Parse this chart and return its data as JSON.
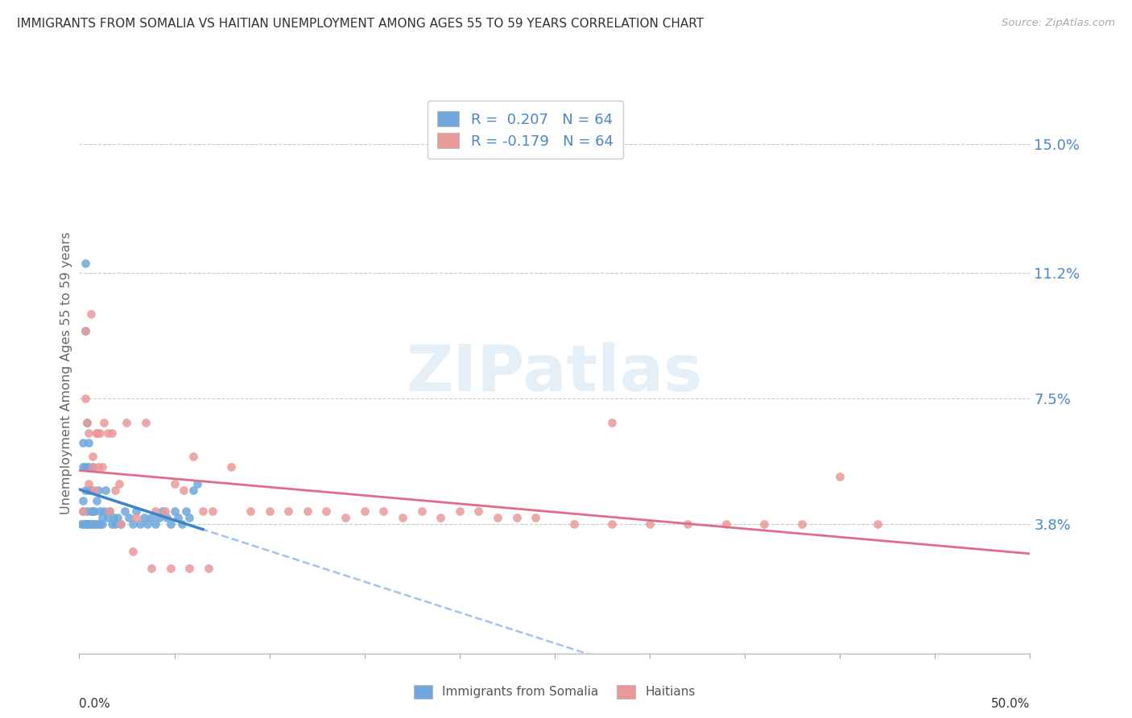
{
  "title": "IMMIGRANTS FROM SOMALIA VS HAITIAN UNEMPLOYMENT AMONG AGES 55 TO 59 YEARS CORRELATION CHART",
  "source": "Source: ZipAtlas.com",
  "ylabel": "Unemployment Among Ages 55 to 59 years",
  "ytick_labels": [
    "3.8%",
    "7.5%",
    "11.2%",
    "15.0%"
  ],
  "ytick_values": [
    0.038,
    0.075,
    0.112,
    0.15
  ],
  "xlim": [
    0.0,
    0.5
  ],
  "ylim": [
    0.0,
    0.165
  ],
  "legend_somalia_r": "R =  0.207",
  "legend_somalia_n": "N = 64",
  "legend_haitian_r": "R = -0.179",
  "legend_haitian_n": "N = 64",
  "somalia_color": "#6fa8dc",
  "haitian_color": "#ea9999",
  "somalia_line_color": "#3d85c8",
  "haitian_line_color": "#e06c8a",
  "dashed_line_color": "#a4c2f4",
  "background_color": "#ffffff",
  "watermark": "ZIPatlas",
  "grid_color": "#cccccc",
  "somalia_x": [
    0.001,
    0.002,
    0.002,
    0.002,
    0.002,
    0.002,
    0.003,
    0.003,
    0.003,
    0.003,
    0.003,
    0.004,
    0.004,
    0.004,
    0.004,
    0.005,
    0.005,
    0.005,
    0.005,
    0.006,
    0.006,
    0.006,
    0.007,
    0.007,
    0.007,
    0.008,
    0.008,
    0.009,
    0.009,
    0.01,
    0.01,
    0.011,
    0.011,
    0.012,
    0.012,
    0.013,
    0.014,
    0.015,
    0.016,
    0.017,
    0.018,
    0.019,
    0.02,
    0.022,
    0.024,
    0.026,
    0.028,
    0.03,
    0.032,
    0.034,
    0.036,
    0.038,
    0.04,
    0.042,
    0.044,
    0.046,
    0.048,
    0.05,
    0.052,
    0.054,
    0.056,
    0.058,
    0.06,
    0.062
  ],
  "somalia_y": [
    0.038,
    0.045,
    0.038,
    0.055,
    0.062,
    0.042,
    0.055,
    0.048,
    0.038,
    0.095,
    0.115,
    0.038,
    0.038,
    0.042,
    0.068,
    0.038,
    0.048,
    0.055,
    0.062,
    0.038,
    0.042,
    0.048,
    0.038,
    0.042,
    0.055,
    0.038,
    0.042,
    0.038,
    0.045,
    0.038,
    0.048,
    0.038,
    0.042,
    0.038,
    0.04,
    0.042,
    0.048,
    0.04,
    0.042,
    0.038,
    0.04,
    0.038,
    0.04,
    0.038,
    0.042,
    0.04,
    0.038,
    0.042,
    0.038,
    0.04,
    0.038,
    0.04,
    0.038,
    0.04,
    0.042,
    0.04,
    0.038,
    0.042,
    0.04,
    0.038,
    0.042,
    0.04,
    0.048,
    0.05
  ],
  "haitian_x": [
    0.002,
    0.003,
    0.004,
    0.005,
    0.006,
    0.007,
    0.008,
    0.009,
    0.01,
    0.011,
    0.013,
    0.015,
    0.017,
    0.019,
    0.021,
    0.025,
    0.03,
    0.035,
    0.04,
    0.045,
    0.05,
    0.055,
    0.06,
    0.065,
    0.07,
    0.08,
    0.09,
    0.1,
    0.11,
    0.12,
    0.13,
    0.14,
    0.15,
    0.16,
    0.17,
    0.18,
    0.19,
    0.2,
    0.21,
    0.22,
    0.23,
    0.24,
    0.26,
    0.28,
    0.3,
    0.32,
    0.34,
    0.36,
    0.38,
    0.4,
    0.42,
    0.003,
    0.005,
    0.007,
    0.009,
    0.012,
    0.016,
    0.022,
    0.028,
    0.038,
    0.048,
    0.058,
    0.068,
    0.28
  ],
  "haitian_y": [
    0.042,
    0.095,
    0.068,
    0.065,
    0.1,
    0.055,
    0.048,
    0.065,
    0.055,
    0.065,
    0.068,
    0.065,
    0.065,
    0.048,
    0.05,
    0.068,
    0.04,
    0.068,
    0.042,
    0.042,
    0.05,
    0.048,
    0.058,
    0.042,
    0.042,
    0.055,
    0.042,
    0.042,
    0.042,
    0.042,
    0.042,
    0.04,
    0.042,
    0.042,
    0.04,
    0.042,
    0.04,
    0.042,
    0.042,
    0.04,
    0.04,
    0.04,
    0.038,
    0.038,
    0.038,
    0.038,
    0.038,
    0.038,
    0.038,
    0.052,
    0.038,
    0.075,
    0.05,
    0.058,
    0.065,
    0.055,
    0.042,
    0.038,
    0.03,
    0.025,
    0.025,
    0.025,
    0.025,
    0.068
  ]
}
